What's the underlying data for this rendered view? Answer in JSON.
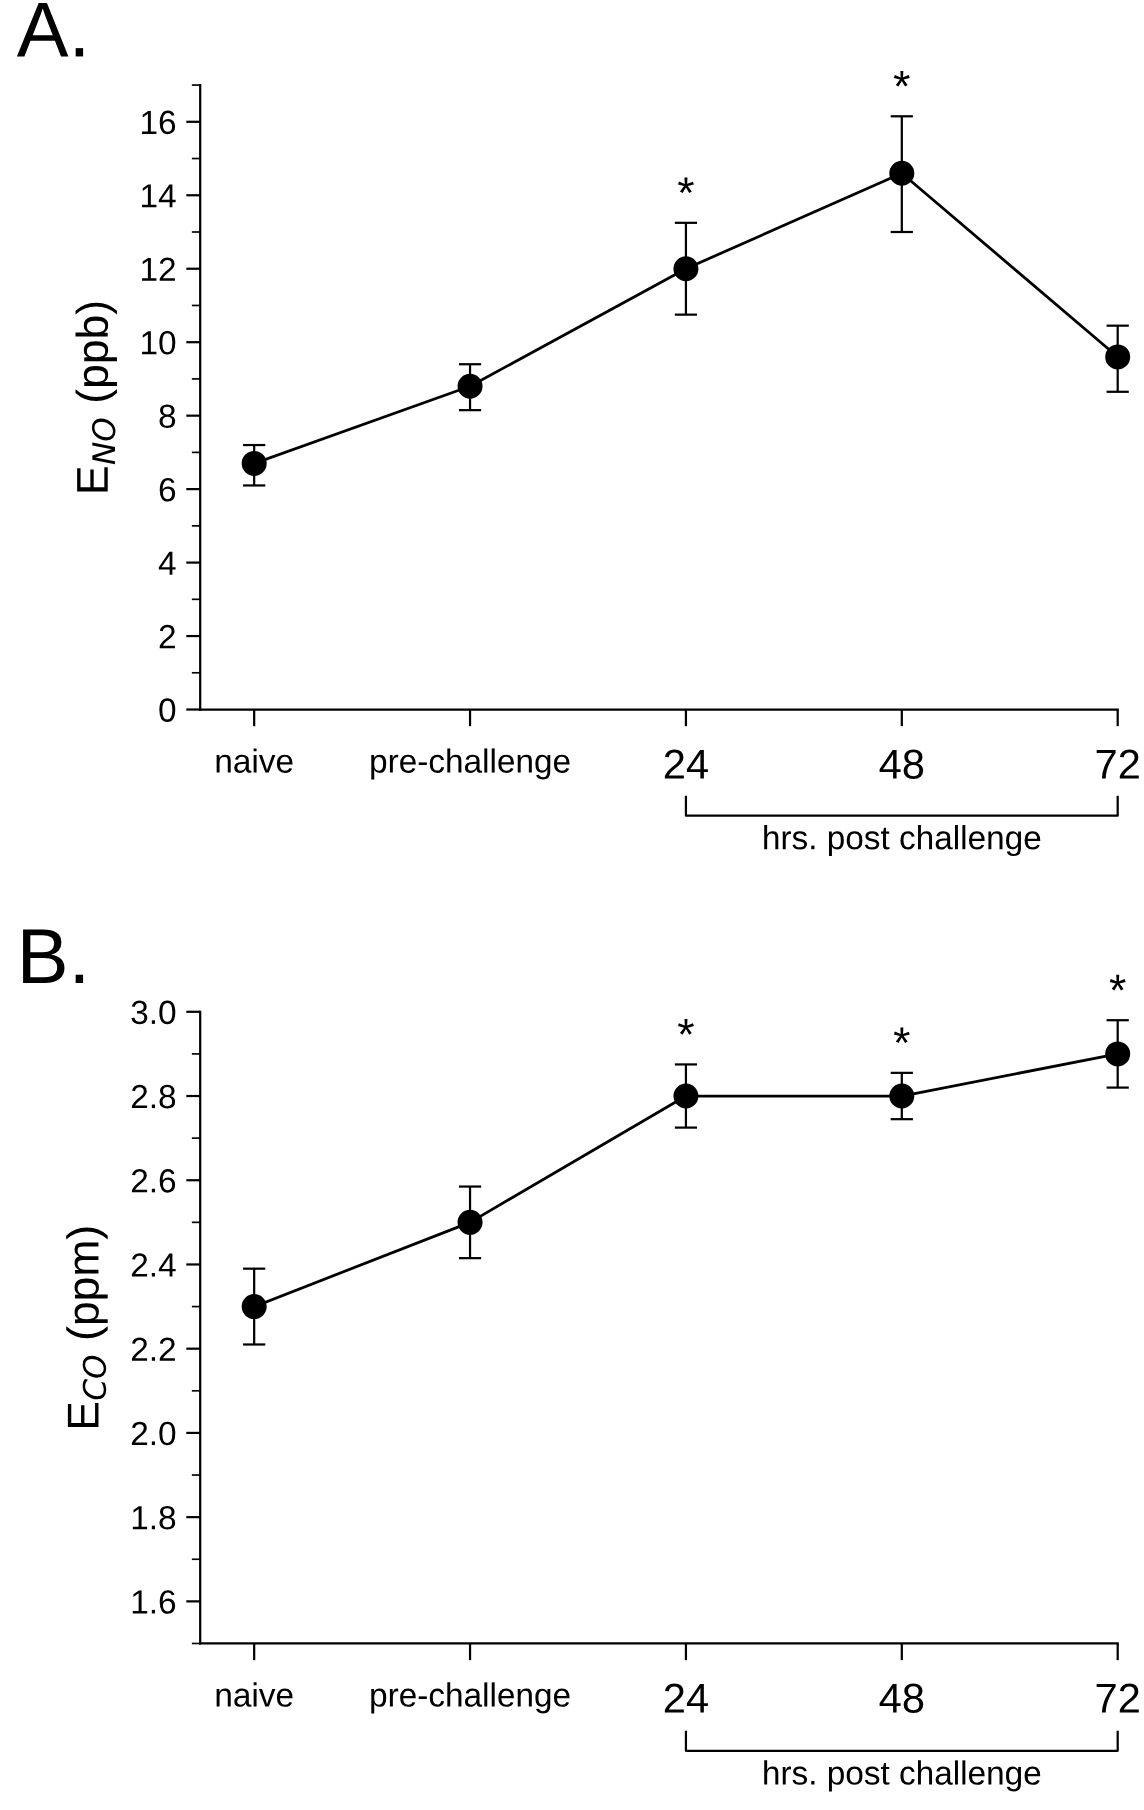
{
  "chart_data": [
    {
      "type": "line",
      "title": "A.",
      "ylabel": "E$_{NO}$ (ppb)",
      "xlabel": "hrs. post challenge",
      "categories": [
        "naive",
        "pre-challenge",
        "24",
        "48",
        "72"
      ],
      "series": [
        {
          "color": "#000000",
          "values": [
            6.7,
            8.8,
            12.0,
            14.6,
            9.6
          ],
          "errors": [
            [
              6.1,
              7.2
            ],
            [
              8.15,
              9.4
            ],
            [
              10.75,
              13.25
            ],
            [
              13.0,
              16.15
            ],
            [
              8.65,
              10.45
            ]
          ]
        }
      ],
      "ylim": [
        0,
        17
      ],
      "yticks": [
        0,
        2,
        4,
        6,
        8,
        10,
        12,
        14,
        16
      ],
      "grid": false,
      "legend": false,
      "marker": "circle",
      "line_style": "solid",
      "annotations": [
        {
          "text": "*",
          "x": "24",
          "y": 13.25
        },
        {
          "text": "*",
          "x": "48",
          "y": 16.15
        }
      ]
    },
    {
      "type": "line",
      "title": "B.",
      "ylabel": "E$_{CO}$ (ppm)",
      "xlabel": "hrs. post challenge",
      "categories": [
        "naive",
        "pre-challenge",
        "24",
        "48",
        "72"
      ],
      "series": [
        {
          "color": "#000000",
          "values": [
            2.3,
            2.5,
            2.8,
            2.8,
            2.9
          ],
          "errors": [
            [
              2.21,
              2.39
            ],
            [
              2.415,
              2.585
            ],
            [
              2.725,
              2.875
            ],
            [
              2.745,
              2.855
            ],
            [
              2.82,
              2.98
            ]
          ]
        }
      ],
      "ylim": [
        1.5,
        3.0
      ],
      "yticks": [
        {
          "value": 1.6,
          "label": "1.6"
        },
        {
          "value": 1.8,
          "label": "1.8"
        },
        {
          "value": 2.0,
          "label": "2.0"
        },
        {
          "value": 2.2,
          "label": "2.2"
        },
        {
          "value": 2.4,
          "label": "2.4"
        },
        {
          "value": 2.6,
          "label": "2.6"
        },
        {
          "value": 2.8,
          "label": "2.8"
        },
        {
          "value": 3.0,
          "label": "3.0"
        }
      ],
      "grid": false,
      "legend": false,
      "marker": "circle",
      "line_style": "solid",
      "annotations": [
        {
          "text": "*",
          "x": "24",
          "y": 2.875
        },
        {
          "text": "*",
          "x": "48",
          "y": 2.855
        },
        {
          "text": "*",
          "x": "72",
          "y": 2.98
        }
      ]
    }
  ]
}
